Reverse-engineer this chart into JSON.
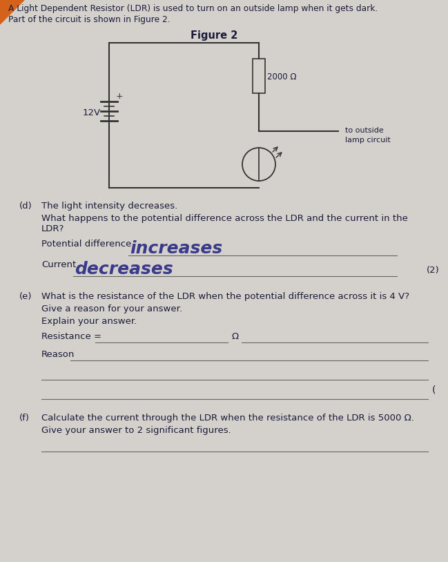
{
  "bg_color": "#d4d1cc",
  "text_color": "#1a1a3a",
  "handwritten_color": "#3a3a8a",
  "title_line1": "A Light Dependent Resistor (LDR) is used to turn on an outside lamp when it gets dark.",
  "title_line2": "Part of the circuit is shown in Figure 2.",
  "figure_title": "Figure 2",
  "circuit_voltage": "12V",
  "circuit_resistance": "2000 Ω",
  "circuit_label": "to outside\nlamp circuit",
  "section_d_label": "(d)",
  "section_d_text1": "The light intensity decreases.",
  "section_d_q1": "What happens to the potential difference across the LDR and the current in the",
  "section_d_q2": "LDR?",
  "pd_label": "Potential difference",
  "pd_answer": "increases",
  "current_label": "Current",
  "current_answer": "decreases",
  "marks_d": "(2)",
  "section_e_label": "(e)",
  "section_e_text": "What is the resistance of the LDR when the potential difference across it is 4 V?",
  "section_e_reason": "Give a reason for your answer.",
  "section_e_explain": "Explain your answer.",
  "resistance_label": "Resistance =",
  "resistance_unit": "Ω",
  "reason_label": "Reason",
  "section_f_label": "(f)",
  "section_f_text": "Calculate the current through the LDR when the resistance of the LDR is 5000 Ω.",
  "section_f_text2": "Give your answer to 2 significant figures.",
  "base_fontsize": 9.5
}
